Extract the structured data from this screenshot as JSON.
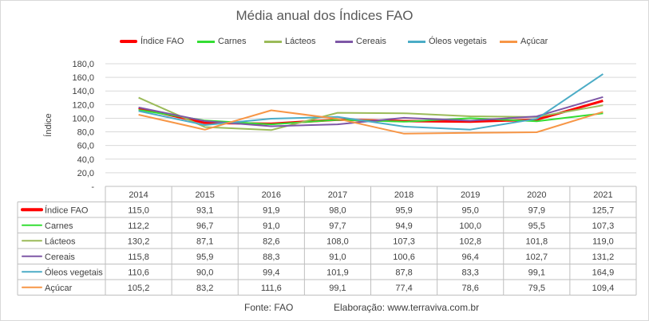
{
  "chart_data": {
    "type": "line",
    "title": "Média anual dos Índices FAO",
    "ylabel": "Índice",
    "xlabel": "",
    "ylim": [
      0,
      180
    ],
    "yticks": [
      "-",
      "20,0",
      "40,0",
      "60,0",
      "80,0",
      "100,0",
      "120,0",
      "140,0",
      "160,0",
      "180,0"
    ],
    "categories": [
      "2014",
      "2015",
      "2016",
      "2017",
      "2018",
      "2019",
      "2020",
      "2021"
    ],
    "legend_position": "top",
    "grid": true,
    "series": [
      {
        "name": "Índice FAO",
        "color": "#ff0000",
        "values": [
          115.0,
          93.1,
          91.9,
          98.0,
          95.9,
          95.0,
          97.9,
          125.7
        ],
        "labels": [
          "115,0",
          "93,1",
          "91,9",
          "98,0",
          "95,9",
          "95,0",
          "97,9",
          "125,7"
        ]
      },
      {
        "name": "Carnes",
        "color": "#33dd33",
        "values": [
          112.2,
          96.7,
          91.0,
          97.7,
          94.9,
          100.0,
          95.5,
          107.3
        ],
        "labels": [
          "112,2",
          "96,7",
          "91,0",
          "97,7",
          "94,9",
          "100,0",
          "95,5",
          "107,3"
        ]
      },
      {
        "name": "Lácteos",
        "color": "#9bbb59",
        "values": [
          130.2,
          87.1,
          82.6,
          108.0,
          107.3,
          102.8,
          101.8,
          119.0
        ],
        "labels": [
          "130,2",
          "87,1",
          "82,6",
          "108,0",
          "107,3",
          "102,8",
          "101,8",
          "119,0"
        ]
      },
      {
        "name": "Cereais",
        "color": "#7e57a6",
        "values": [
          115.8,
          95.9,
          88.3,
          91.0,
          100.6,
          96.4,
          102.7,
          131.2
        ],
        "labels": [
          "115,8",
          "95,9",
          "88,3",
          "91,0",
          "100,6",
          "96,4",
          "102,7",
          "131,2"
        ]
      },
      {
        "name": "Óleos vegetais",
        "color": "#4bacc6",
        "values": [
          110.6,
          90.0,
          99.4,
          101.9,
          87.8,
          83.3,
          99.1,
          164.9
        ],
        "labels": [
          "110,6",
          "90,0",
          "99,4",
          "101,9",
          "87,8",
          "83,3",
          "99,1",
          "164,9"
        ]
      },
      {
        "name": "Açúcar",
        "color": "#f79646",
        "values": [
          105.2,
          83.2,
          111.6,
          99.1,
          77.4,
          78.6,
          79.5,
          109.4
        ],
        "labels": [
          "105,2",
          "83,2",
          "111,6",
          "99,1",
          "77,4",
          "78,6",
          "79,5",
          "109,4"
        ]
      }
    ]
  },
  "footer": {
    "source": "Fonte:  FAO",
    "credit": "Elaboração: www.terraviva.com.br"
  }
}
